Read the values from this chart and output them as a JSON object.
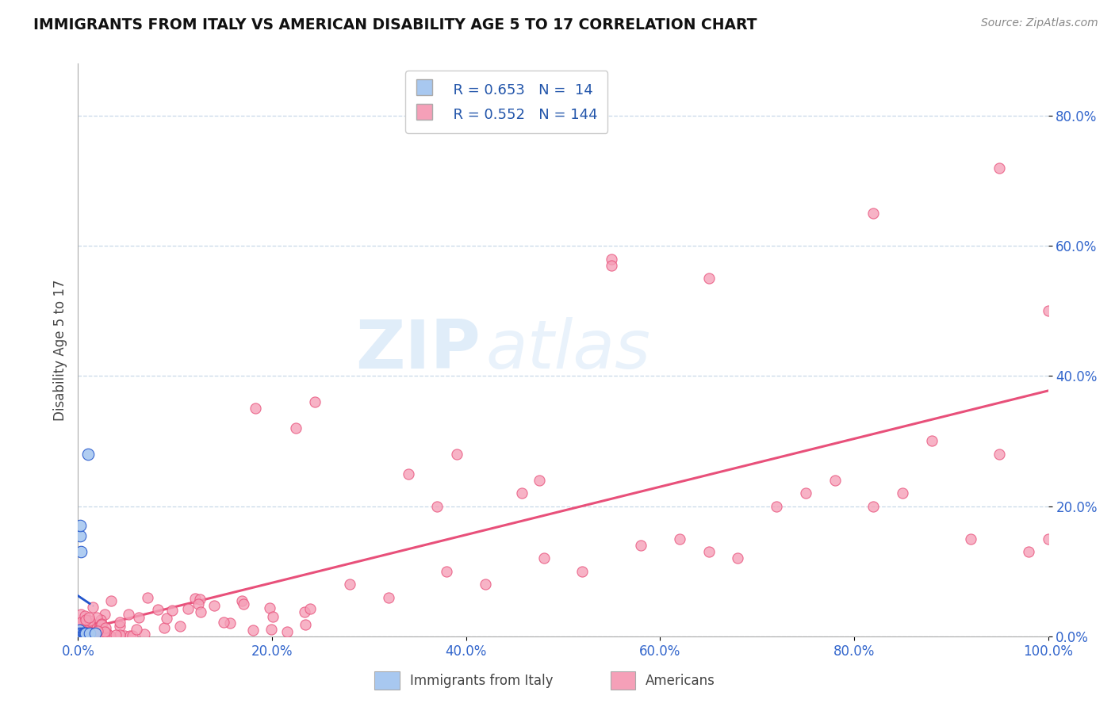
{
  "title": "IMMIGRANTS FROM ITALY VS AMERICAN DISABILITY AGE 5 TO 17 CORRELATION CHART",
  "source": "Source: ZipAtlas.com",
  "ylabel": "Disability Age 5 to 17",
  "legend_r1": "R = 0.653",
  "legend_n1": "N =  14",
  "legend_r2": "R = 0.552",
  "legend_n2": "N = 144",
  "color_italy": "#a8c8f0",
  "color_americans": "#f5a0b8",
  "trend_color_italy": "#2255cc",
  "trend_color_americans": "#e8507a",
  "watermark_zip": "ZIP",
  "watermark_atlas": "atlas",
  "italy_x": [
    0.0008,
    0.001,
    0.0015,
    0.002,
    0.0025,
    0.003,
    0.004,
    0.005,
    0.006,
    0.007,
    0.008,
    0.01,
    0.012,
    0.018
  ],
  "italy_y": [
    0.005,
    0.01,
    0.005,
    0.155,
    0.17,
    0.13,
    0.005,
    0.005,
    0.005,
    0.005,
    0.005,
    0.28,
    0.005,
    0.005
  ],
  "xlim": [
    0.0,
    1.0
  ],
  "ylim": [
    0.0,
    0.88
  ],
  "yticks": [
    0.0,
    0.2,
    0.4,
    0.6,
    0.8
  ],
  "ytick_labels": [
    "0.0%",
    "20.0%",
    "40.0%",
    "60.0%",
    "80.0%"
  ],
  "xticks": [
    0.0,
    0.2,
    0.4,
    0.6,
    0.8,
    1.0
  ],
  "xtick_labels": [
    "0.0%",
    "20.0%",
    "40.0%",
    "60.0%",
    "80.0%",
    "100.0%"
  ]
}
